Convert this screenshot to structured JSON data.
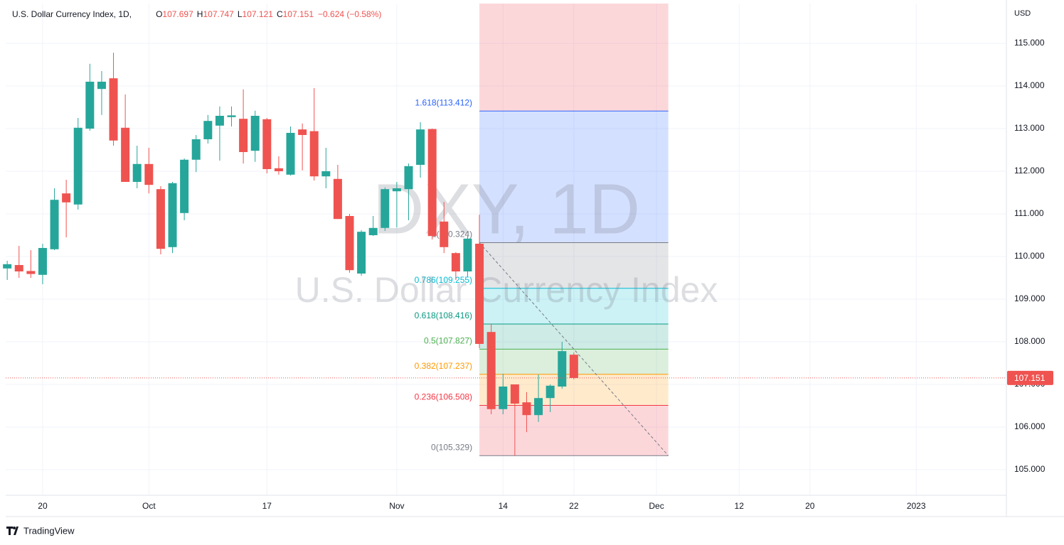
{
  "chart_data": {
    "type": "candlestick",
    "title": "U.S. Dollar Currency Index, 1D,",
    "ohlc_keys": [
      "O",
      "H",
      "L",
      "C"
    ],
    "change": "−0.624 (−0.58%)",
    "watermark_symbol": "DXY, 1D",
    "watermark_name": "U.S. Dollar Currency Index",
    "currency": "USD",
    "brand": "TradingView",
    "up_color": "#26a69a",
    "down_color": "#ef5350",
    "open": [
      109.72,
      109.8,
      109.66,
      109.57,
      110.17,
      111.48,
      111.22,
      113.0,
      113.93,
      114.18,
      113.02,
      111.75,
      112.17,
      111.58,
      110.22,
      111.02,
      112.27,
      112.75,
      113.07,
      113.27,
      113.23,
      112.48,
      113.22,
      112.07,
      111.92,
      112.98,
      112.94,
      111.88,
      111.82,
      110.95,
      109.6,
      110.5,
      110.67,
      111.53,
      111.58,
      112.15,
      112.99,
      110.82,
      110.08,
      109.65,
      110.3,
      108.23,
      106.42,
      107.0,
      106.58,
      106.28,
      106.68,
      106.95,
      107.697
    ],
    "high": [
      109.9,
      110.25,
      110.15,
      110.3,
      111.6,
      111.8,
      113.25,
      114.52,
      114.35,
      114.78,
      113.8,
      112.6,
      112.55,
      111.65,
      111.75,
      112.3,
      112.85,
      113.32,
      113.52,
      113.52,
      113.92,
      113.42,
      113.25,
      112.35,
      113.05,
      113.12,
      113.95,
      112.55,
      112.15,
      111.0,
      110.62,
      110.95,
      111.62,
      111.75,
      112.18,
      113.15,
      113.0,
      111.28,
      110.1,
      110.48,
      110.98,
      108.42,
      107.25,
      107.0,
      106.82,
      107.23,
      107.0,
      108.0,
      107.747
    ],
    "low": [
      109.45,
      109.5,
      109.5,
      109.35,
      110.15,
      110.45,
      111.1,
      112.95,
      113.32,
      112.6,
      111.75,
      111.6,
      111.48,
      110.05,
      110.08,
      110.85,
      111.98,
      112.65,
      112.25,
      113.05,
      112.18,
      112.22,
      111.95,
      111.92,
      111.9,
      112.02,
      111.78,
      111.6,
      110.88,
      109.62,
      109.55,
      110.48,
      110.6,
      110.68,
      110.85,
      111.85,
      110.4,
      110.08,
      109.45,
      109.52,
      107.85,
      106.3,
      106.3,
      105.33,
      105.88,
      106.12,
      106.35,
      106.9,
      107.121
    ],
    "close": [
      109.82,
      109.65,
      109.59,
      110.2,
      111.33,
      111.27,
      113.02,
      114.1,
      114.1,
      112.72,
      111.75,
      112.17,
      111.68,
      110.18,
      111.72,
      112.27,
      112.75,
      113.18,
      113.3,
      113.31,
      112.45,
      113.3,
      112.05,
      112.0,
      112.9,
      112.85,
      111.88,
      112.0,
      110.88,
      109.68,
      110.58,
      110.67,
      111.58,
      111.6,
      112.12,
      112.98,
      110.48,
      110.22,
      109.65,
      110.42,
      107.95,
      106.42,
      106.95,
      106.55,
      106.28,
      106.68,
      106.97,
      107.78,
      107.151
    ],
    "last_price": 107.151,
    "xlim": [
      -0.13,
      84.64
    ],
    "xticks": [
      {
        "value": 3,
        "label": "20"
      },
      {
        "value": 12,
        "label": "Oct"
      },
      {
        "value": 22,
        "label": "17"
      },
      {
        "value": 33,
        "label": "Nov"
      },
      {
        "value": 42,
        "label": "14"
      },
      {
        "value": 48,
        "label": "22"
      },
      {
        "value": 55,
        "label": "Dec"
      },
      {
        "value": 62,
        "label": "12"
      },
      {
        "value": 68,
        "label": "20"
      },
      {
        "value": 77,
        "label": "2023"
      }
    ],
    "ylim": [
      104.4,
      115.933
    ],
    "yticks": [
      {
        "value": 105,
        "label": "105.000"
      },
      {
        "value": 106,
        "label": "106.000"
      },
      {
        "value": 107,
        "label": "107.000"
      },
      {
        "value": 108,
        "label": "108.000"
      },
      {
        "value": 109,
        "label": "109.000"
      },
      {
        "value": 110,
        "label": "110.000"
      },
      {
        "value": 111,
        "label": "111.000"
      },
      {
        "value": 112,
        "label": "112.000"
      },
      {
        "value": 113,
        "label": "113.000"
      },
      {
        "value": 114,
        "label": "114.000"
      },
      {
        "value": 115,
        "label": "115.000"
      }
    ],
    "grid": true,
    "fib": {
      "start_index": 40,
      "end_index": 56,
      "extension_color": "#f23645",
      "levels": [
        {
          "price": 105.329,
          "label": "0(105.329)",
          "color": "#787b86"
        },
        {
          "price": 106.508,
          "label": "0.236(106.508)",
          "color": "#f23645"
        },
        {
          "price": 107.237,
          "label": "0.382(107.237)",
          "color": "#ff9800"
        },
        {
          "price": 107.827,
          "label": "0.5(107.827)",
          "color": "#4caf50"
        },
        {
          "price": 108.416,
          "label": "0.618(108.416)",
          "color": "#089981"
        },
        {
          "price": 109.255,
          "label": "0.786(109.255)",
          "color": "#00bcd4"
        },
        {
          "price": 110.324,
          "label": "1(110.324)",
          "color": "#787b86"
        },
        {
          "price": 113.412,
          "label": "1.618(113.412)",
          "color": "#2962ff"
        }
      ]
    }
  }
}
